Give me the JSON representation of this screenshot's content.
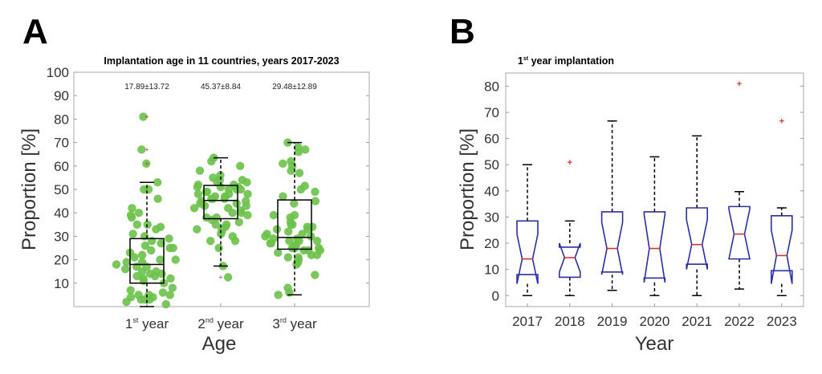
{
  "chart_data": [
    {
      "panel_label": "A",
      "type": "box+scatter",
      "title": "Implantation age in 11 countries, years 2017-2023",
      "xlabel": "Age",
      "ylabel": "Proportion [%]",
      "ylim": [
        0,
        100
      ],
      "yticks": [
        10,
        20,
        30,
        40,
        50,
        60,
        70,
        80,
        90,
        100
      ],
      "grid": false,
      "colors": {
        "points": "#6cc24a",
        "box": "#000000",
        "outlier": "#c0392b"
      },
      "categories": [
        {
          "base": "1",
          "sup": "st",
          "rest": " year"
        },
        {
          "base": "2",
          "sup": "nd",
          "rest": " year"
        },
        {
          "base": "3",
          "sup": "rd",
          "rest": " year"
        }
      ],
      "annotations": [
        "17.89±13.72",
        "45.37±8.84",
        "29.48±12.89"
      ],
      "boxes": [
        {
          "whisker_low": 0,
          "q1": 10,
          "median": 18,
          "q3": 29,
          "whisker_high": 53,
          "outliers": [
            61,
            67,
            81
          ]
        },
        {
          "whisker_low": 17.3,
          "q1": 37.5,
          "median": 45.3,
          "q3": 51.7,
          "whisker_high": 63.5,
          "outliers": [
            12.5
          ]
        },
        {
          "whisker_low": 5,
          "q1": 24.5,
          "median": 29.5,
          "q3": 45.5,
          "whisker_high": 70,
          "outliers": []
        }
      ],
      "points": [
        [
          1,
          2,
          3,
          3,
          3,
          4,
          4,
          5,
          5,
          5,
          6,
          7,
          8,
          10,
          11,
          12,
          12,
          13,
          13,
          14,
          14,
          15,
          15,
          16,
          17,
          17,
          18,
          19,
          19,
          20,
          20,
          21,
          22,
          23,
          24,
          25,
          25,
          26,
          27,
          28,
          29,
          30,
          31,
          33,
          34,
          35,
          35,
          38,
          39,
          40,
          42,
          46,
          50,
          50,
          53,
          61,
          67,
          81
        ],
        [
          12.5,
          17.3,
          25,
          28,
          28,
          30,
          31,
          32,
          33,
          33,
          34,
          35,
          35,
          36,
          37,
          38,
          38,
          39,
          40,
          40,
          41,
          42,
          42,
          43,
          43,
          44,
          44,
          45,
          45,
          46,
          46,
          46,
          47,
          47,
          48,
          48,
          48,
          49,
          49,
          50,
          50,
          50,
          51,
          51,
          51,
          52,
          52,
          53,
          53,
          54,
          54,
          55,
          56,
          58,
          60,
          62,
          63.5
        ],
        [
          5,
          6,
          8,
          13.5,
          18,
          19,
          20,
          20,
          21,
          21,
          22,
          22,
          23,
          24,
          24,
          24,
          25,
          25,
          25,
          26,
          26,
          27,
          27,
          28,
          28,
          28,
          29,
          29,
          30,
          30,
          31,
          31,
          32,
          33,
          33,
          34,
          34,
          35,
          35,
          36,
          38,
          39,
          39,
          44,
          45,
          47,
          49,
          50,
          51.5,
          57,
          58,
          60,
          61,
          62,
          66,
          67,
          68,
          70
        ]
      ]
    },
    {
      "panel_label": "B",
      "type": "notched-box",
      "title": {
        "base": "1",
        "sup": "st",
        "rest": " year implantation"
      },
      "xlabel": "Year",
      "ylabel": "Proportion [%]",
      "ylim": [
        -4.2,
        85
      ],
      "yticks": [
        0,
        10,
        20,
        30,
        40,
        50,
        60,
        70,
        80
      ],
      "grid": false,
      "colors": {
        "box": "#2b2fa8",
        "median": "#e0302a",
        "whisker": "#000000",
        "outlier": "#e0302a"
      },
      "categories": [
        "2017",
        "2018",
        "2019",
        "2020",
        "2021",
        "2022",
        "2023"
      ],
      "boxes": [
        {
          "whisker_low": 0,
          "q1": 8,
          "notch_low": 4.5,
          "median": 14,
          "notch_high": 23.5,
          "q3": 28.5,
          "whisker_high": 50,
          "outliers": []
        },
        {
          "whisker_low": 0,
          "q1": 7,
          "notch_low": 9,
          "median": 14.5,
          "notch_high": 20,
          "q3": 18.5,
          "whisker_high": 28.5,
          "outliers": [
            51
          ]
        },
        {
          "whisker_low": 2,
          "q1": 9,
          "notch_low": 8,
          "median": 18,
          "notch_high": 28,
          "q3": 32,
          "whisker_high": 66.7,
          "outliers": []
        },
        {
          "whisker_low": 0,
          "q1": 6.7,
          "notch_low": 5,
          "median": 18,
          "notch_high": 31,
          "q3": 32,
          "whisker_high": 53,
          "outliers": []
        },
        {
          "whisker_low": 0,
          "q1": 12,
          "notch_low": 10,
          "median": 19.5,
          "notch_high": 29,
          "q3": 33.5,
          "whisker_high": 61,
          "outliers": []
        },
        {
          "whisker_low": 2.5,
          "q1": 14,
          "notch_low": 14,
          "median": 23.5,
          "notch_high": 33,
          "q3": 34,
          "whisker_high": 39.7,
          "outliers": [
            81
          ]
        },
        {
          "whisker_low": 0,
          "q1": 9.5,
          "notch_low": 4.5,
          "median": 15.3,
          "notch_high": 25,
          "q3": 30.5,
          "whisker_high": 33.5,
          "outliers": [
            66.7
          ]
        }
      ]
    }
  ]
}
